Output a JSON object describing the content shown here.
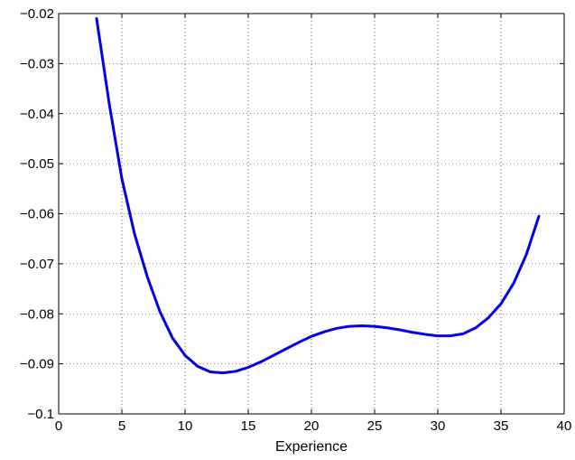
{
  "chart_data": {
    "type": "line",
    "title": "",
    "xlabel": "Experience",
    "ylabel": "",
    "xlim": [
      0,
      40
    ],
    "ylim": [
      -0.1,
      -0.02
    ],
    "grid": true,
    "xticks": [
      "0",
      "5",
      "10",
      "15",
      "20",
      "25",
      "30",
      "35",
      "40"
    ],
    "yticks": [
      "−0.1",
      "−0.09",
      "−0.08",
      "−0.07",
      "−0.06",
      "−0.05",
      "−0.04",
      "−0.03",
      "−0.02"
    ],
    "series": [
      {
        "color": "#0000ee",
        "x": [
          3,
          4,
          5,
          6,
          7,
          8,
          9,
          10,
          11,
          12,
          13,
          14,
          15,
          16,
          17,
          18,
          19,
          20,
          21,
          22,
          23,
          24,
          25,
          26,
          27,
          28,
          29,
          30,
          31,
          32,
          33,
          34,
          35,
          36,
          37,
          38
        ],
        "y": [
          -0.021,
          -0.038,
          -0.053,
          -0.064,
          -0.0725,
          -0.0795,
          -0.0848,
          -0.0883,
          -0.0905,
          -0.0916,
          -0.0918,
          -0.0915,
          -0.0907,
          -0.0896,
          -0.0883,
          -0.087,
          -0.0857,
          -0.0845,
          -0.0836,
          -0.0829,
          -0.0825,
          -0.0824,
          -0.0825,
          -0.0828,
          -0.0832,
          -0.0837,
          -0.0841,
          -0.0844,
          -0.0844,
          -0.084,
          -0.0828,
          -0.0808,
          -0.078,
          -0.0739,
          -0.0682,
          -0.0605
        ]
      }
    ]
  }
}
